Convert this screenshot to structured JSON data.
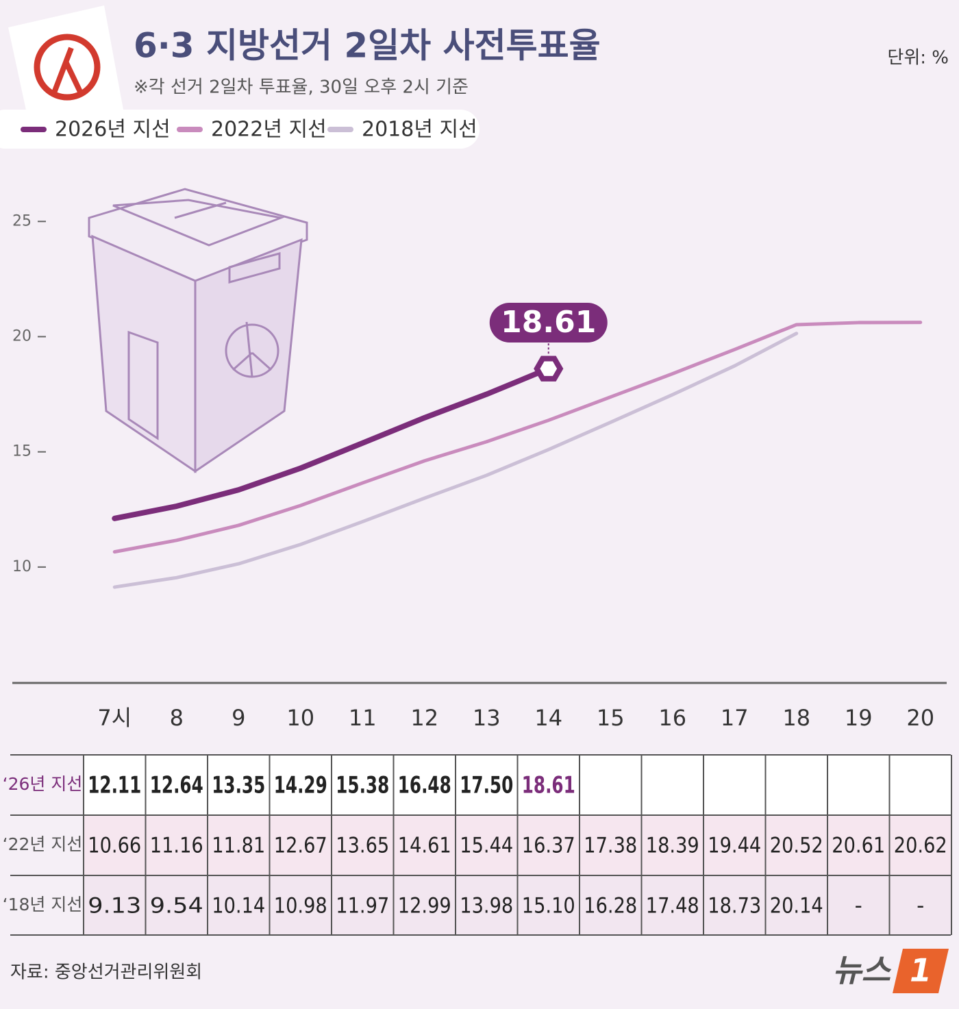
{
  "title": "6·3 지방선거 2일차 사전투표율",
  "subtitle": "※각 선거 2일차 투표율, 30일 오후 2시 기준",
  "unit": "단위: %",
  "source": "자료: 중앙선거관리위원회",
  "logo": [
    "뉴스",
    "1"
  ],
  "chart_data": {
    "type": "line",
    "categories": [
      "7시",
      "8",
      "9",
      "10",
      "11",
      "12",
      "13",
      "14",
      "15",
      "16",
      "17",
      "18",
      "19",
      "20"
    ],
    "row_labels": [
      "‘26년 지선",
      "‘22년 지선",
      "‘18년 지선"
    ],
    "series": [
      {
        "name": "2026년 지선",
        "color": "#7b2d7a",
        "values": [
          12.11,
          12.64,
          13.35,
          14.29,
          15.38,
          16.48,
          17.5,
          18.61,
          null,
          null,
          null,
          null,
          null,
          null
        ],
        "value_labels": [
          "12.11",
          "12.64",
          "13.35",
          "14.29",
          "15.38",
          "16.48",
          "17.50",
          "18.61",
          null,
          null,
          null,
          null,
          null,
          null
        ]
      },
      {
        "name": "2022년 지선",
        "color": "#c98bbd",
        "values": [
          10.66,
          11.16,
          11.81,
          12.67,
          13.65,
          14.61,
          15.44,
          16.37,
          17.38,
          18.39,
          19.44,
          20.52,
          20.61,
          20.62
        ],
        "value_labels": [
          "10.66",
          "11.16",
          "11.81",
          "12.67",
          "13.65",
          "14.61",
          "15.44",
          "16.37",
          "17.38",
          "18.39",
          "19.44",
          "20.52",
          "20.61",
          "20.62"
        ]
      },
      {
        "name": "2018년 지선",
        "color": "#cbbfd6",
        "values": [
          9.13,
          9.54,
          10.14,
          10.98,
          11.97,
          12.99,
          13.98,
          15.1,
          16.28,
          17.48,
          18.73,
          20.14,
          null,
          null
        ],
        "value_labels": [
          "9.13",
          "9.54",
          "10.14",
          "10.98",
          "11.97",
          "12.99",
          "13.98",
          "15.10",
          "16.28",
          "17.48",
          "18.73",
          "20.14",
          "-",
          "-"
        ]
      }
    ],
    "ylim": [
      5,
      27
    ],
    "yticks": [
      10,
      15,
      20,
      25
    ],
    "legend": "top-left"
  }
}
